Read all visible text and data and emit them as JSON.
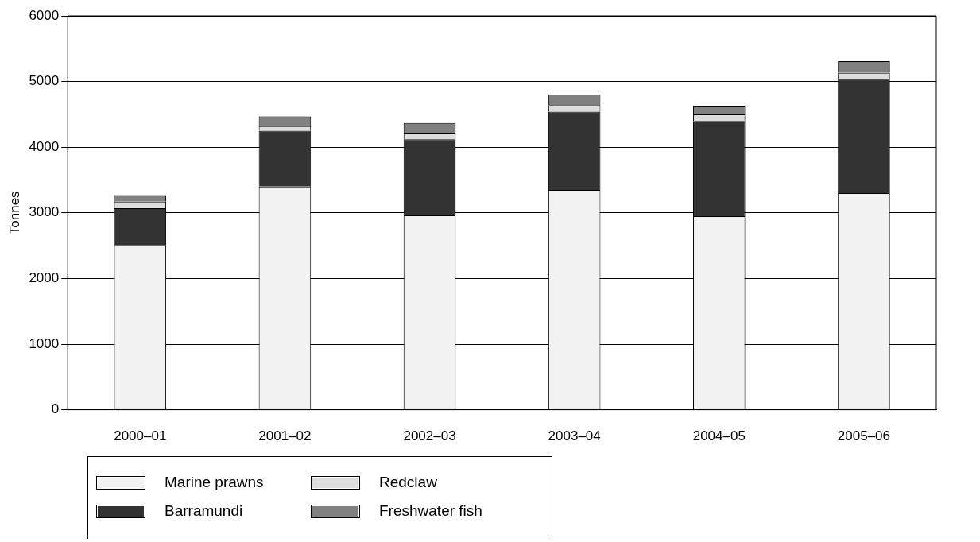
{
  "chart_data": {
    "type": "bar",
    "stacked": true,
    "ylabel": "Tonnes",
    "categories": [
      "2000–01",
      "2001–02",
      "2002–03",
      "2003–04",
      "2004–05",
      "2005–06"
    ],
    "series": [
      {
        "name": "Marine prawns",
        "color": "#f2f2f2",
        "values": [
          2510,
          3400,
          2960,
          3350,
          2950,
          3300
        ]
      },
      {
        "name": "Barramundi",
        "color": "#333333",
        "values": [
          560,
          850,
          1160,
          1190,
          1450,
          1740
        ]
      },
      {
        "name": "Redclaw",
        "color": "#dddddd",
        "values": [
          100,
          70,
          100,
          100,
          100,
          90
        ]
      },
      {
        "name": "Freshwater fish",
        "color": "#808080",
        "values": [
          100,
          150,
          150,
          160,
          120,
          180
        ]
      }
    ],
    "ylim": [
      0,
      6000
    ],
    "yticks": [
      0,
      1000,
      2000,
      3000,
      4000,
      5000,
      6000
    ],
    "grid": "y",
    "legend": "bottom"
  }
}
